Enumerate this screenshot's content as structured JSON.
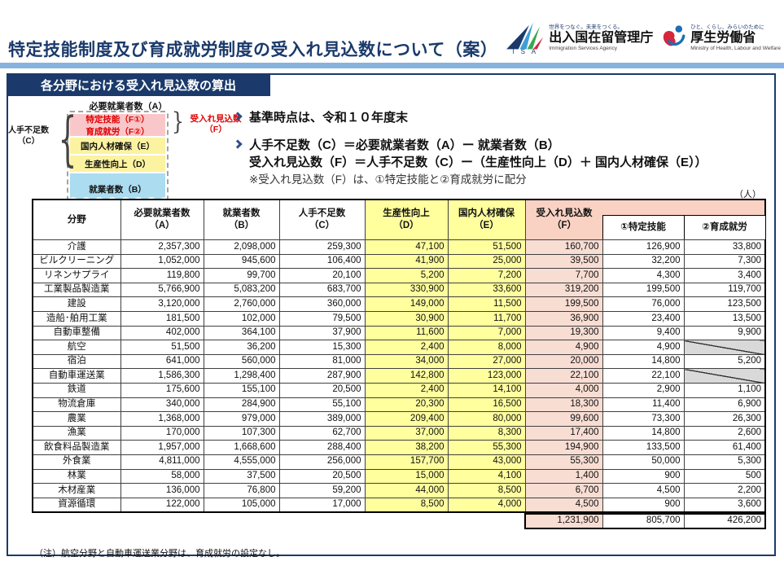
{
  "header": {
    "title": "特定技能制度及び育成就労制度の受入れ見込数について（案）",
    "logos": {
      "isa": {
        "abbr": "I S A",
        "tagline": "世界をつなぐ。未来をつくる。",
        "name": "出入国在留管理庁",
        "name_en": "Immigration Services Agency"
      },
      "mhlw": {
        "tagline": "ひと、くらし、みらいのために",
        "name": "厚生労働省",
        "name_en": "Ministry of Health, Labour and Welfare"
      }
    }
  },
  "section": {
    "banner": "各分野における受入れ見込数の算出"
  },
  "diagram": {
    "top_label": "必要就業者数（A）",
    "pink_box_line1": "特定技能（F①）",
    "pink_box_line2": "育成就労（F②）",
    "yellow_box_1": "国内人材確保（E）",
    "yellow_box_2": "生産性向上（D）",
    "blue_box": "就業者数（B）",
    "left_brace_label_line1": "人手不足数",
    "left_brace_label_line2": "（C）",
    "right_brace_label_line1": "受入れ見込数",
    "right_brace_label_line2": "（F）"
  },
  "bullets": [
    {
      "text": "基準時点は、令和１０年度末"
    },
    {
      "line1": "人手不足数（C）＝必要就業者数（A）ー 就業者数（B）",
      "line2": "受入れ見込数（F）＝人手不足数（C）ー（生産性向上（D）＋ 国内人材確保（E））",
      "note": "※受入れ見込数（F）は、①特定技能と②育成就労に配分"
    }
  ],
  "table": {
    "unit_label": "（人）",
    "columns": {
      "field": {
        "label": "分野"
      },
      "a": {
        "label": "必要就業者数",
        "sub": "（A）"
      },
      "b": {
        "label": "就業者数",
        "sub": "（B）"
      },
      "c": {
        "label": "人手不足数",
        "sub": "（C）"
      },
      "d": {
        "label": "生産性向上",
        "sub": "（D）"
      },
      "e": {
        "label": "国内人材確保",
        "sub": "（E）"
      },
      "f": {
        "label": "受入れ見込数",
        "sub": "（F）"
      },
      "f1": {
        "label": "①特定技能"
      },
      "f2": {
        "label": "②育成就労"
      }
    },
    "rows": [
      {
        "field": "介護",
        "a": "2,357,300",
        "b": "2,098,000",
        "c": "259,300",
        "d": "47,100",
        "e": "51,500",
        "f": "160,700",
        "f1": "126,900",
        "f2": "33,800"
      },
      {
        "field": "ビルクリーニング",
        "a": "1,052,000",
        "b": "945,600",
        "c": "106,400",
        "d": "41,900",
        "e": "25,000",
        "f": "39,500",
        "f1": "32,200",
        "f2": "7,300"
      },
      {
        "field": "リネンサプライ",
        "a": "119,800",
        "b": "99,700",
        "c": "20,100",
        "d": "5,200",
        "e": "7,200",
        "f": "7,700",
        "f1": "4,300",
        "f2": "3,400"
      },
      {
        "field": "工業製品製造業",
        "a": "5,766,900",
        "b": "5,083,200",
        "c": "683,700",
        "d": "330,900",
        "e": "33,600",
        "f": "319,200",
        "f1": "199,500",
        "f2": "119,700"
      },
      {
        "field": "建設",
        "a": "3,120,000",
        "b": "2,760,000",
        "c": "360,000",
        "d": "149,000",
        "e": "11,500",
        "f": "199,500",
        "f1": "76,000",
        "f2": "123,500"
      },
      {
        "field": "造船･舶用工業",
        "a": "181,500",
        "b": "102,000",
        "c": "79,500",
        "d": "30,900",
        "e": "11,700",
        "f": "36,900",
        "f1": "23,400",
        "f2": "13,500"
      },
      {
        "field": "自動車整備",
        "a": "402,000",
        "b": "364,100",
        "c": "37,900",
        "d": "11,600",
        "e": "7,000",
        "f": "19,300",
        "f1": "9,400",
        "f2": "9,900"
      },
      {
        "field": "航空",
        "a": "51,500",
        "b": "36,200",
        "c": "15,300",
        "d": "2,400",
        "e": "8,000",
        "f": "4,900",
        "f1": "4,900",
        "f2": null
      },
      {
        "field": "宿泊",
        "a": "641,000",
        "b": "560,000",
        "c": "81,000",
        "d": "34,000",
        "e": "27,000",
        "f": "20,000",
        "f1": "14,800",
        "f2": "5,200"
      },
      {
        "field": "自動車運送業",
        "a": "1,586,300",
        "b": "1,298,400",
        "c": "287,900",
        "d": "142,800",
        "e": "123,000",
        "f": "22,100",
        "f1": "22,100",
        "f2": null
      },
      {
        "field": "鉄道",
        "a": "175,600",
        "b": "155,100",
        "c": "20,500",
        "d": "2,400",
        "e": "14,100",
        "f": "4,000",
        "f1": "2,900",
        "f2": "1,100"
      },
      {
        "field": "物流倉庫",
        "a": "340,000",
        "b": "284,900",
        "c": "55,100",
        "d": "20,300",
        "e": "16,500",
        "f": "18,300",
        "f1": "11,400",
        "f2": "6,900"
      },
      {
        "field": "農業",
        "a": "1,368,000",
        "b": "979,000",
        "c": "389,000",
        "d": "209,400",
        "e": "80,000",
        "f": "99,600",
        "f1": "73,300",
        "f2": "26,300"
      },
      {
        "field": "漁業",
        "a": "170,000",
        "b": "107,300",
        "c": "62,700",
        "d": "37,000",
        "e": "8,300",
        "f": "17,400",
        "f1": "14,800",
        "f2": "2,600"
      },
      {
        "field": "飲食料品製造業",
        "a": "1,957,000",
        "b": "1,668,600",
        "c": "288,400",
        "d": "38,200",
        "e": "55,300",
        "f": "194,900",
        "f1": "133,500",
        "f2": "61,400"
      },
      {
        "field": "外食業",
        "a": "4,811,000",
        "b": "4,555,000",
        "c": "256,000",
        "d": "157,700",
        "e": "43,000",
        "f": "55,300",
        "f1": "50,000",
        "f2": "5,300"
      },
      {
        "field": "林業",
        "a": "58,000",
        "b": "37,500",
        "c": "20,500",
        "d": "15,000",
        "e": "4,100",
        "f": "1,400",
        "f1": "900",
        "f2": "500"
      },
      {
        "field": "木材産業",
        "a": "136,000",
        "b": "76,800",
        "c": "59,200",
        "d": "44,000",
        "e": "8,500",
        "f": "6,700",
        "f1": "4,500",
        "f2": "2,200"
      },
      {
        "field": "資源循環",
        "a": "122,000",
        "b": "105,000",
        "c": "17,000",
        "d": "8,500",
        "e": "4,000",
        "f": "4,500",
        "f1": "900",
        "f2": "3,600"
      }
    ],
    "totals": {
      "f": "1,231,900",
      "f1": "805,700",
      "f2": "426,200"
    }
  },
  "note": "（注）航空分野と自動車運送業分野は、育成就労の設定なし。",
  "colors": {
    "navy": "#1b3a6b",
    "light_blue_bar": "#85b3de",
    "header_yellow": "#ffff9e",
    "header_pink": "#f9d2c4",
    "cell_pink": "#f8ddd3",
    "diagram_pink": "#f9c7c9",
    "diagram_yellow": "#fcf3a1",
    "diagram_blue": "#abdcf0",
    "accent_red": "#e00000",
    "hatch_gray": "#d9d9d9"
  }
}
